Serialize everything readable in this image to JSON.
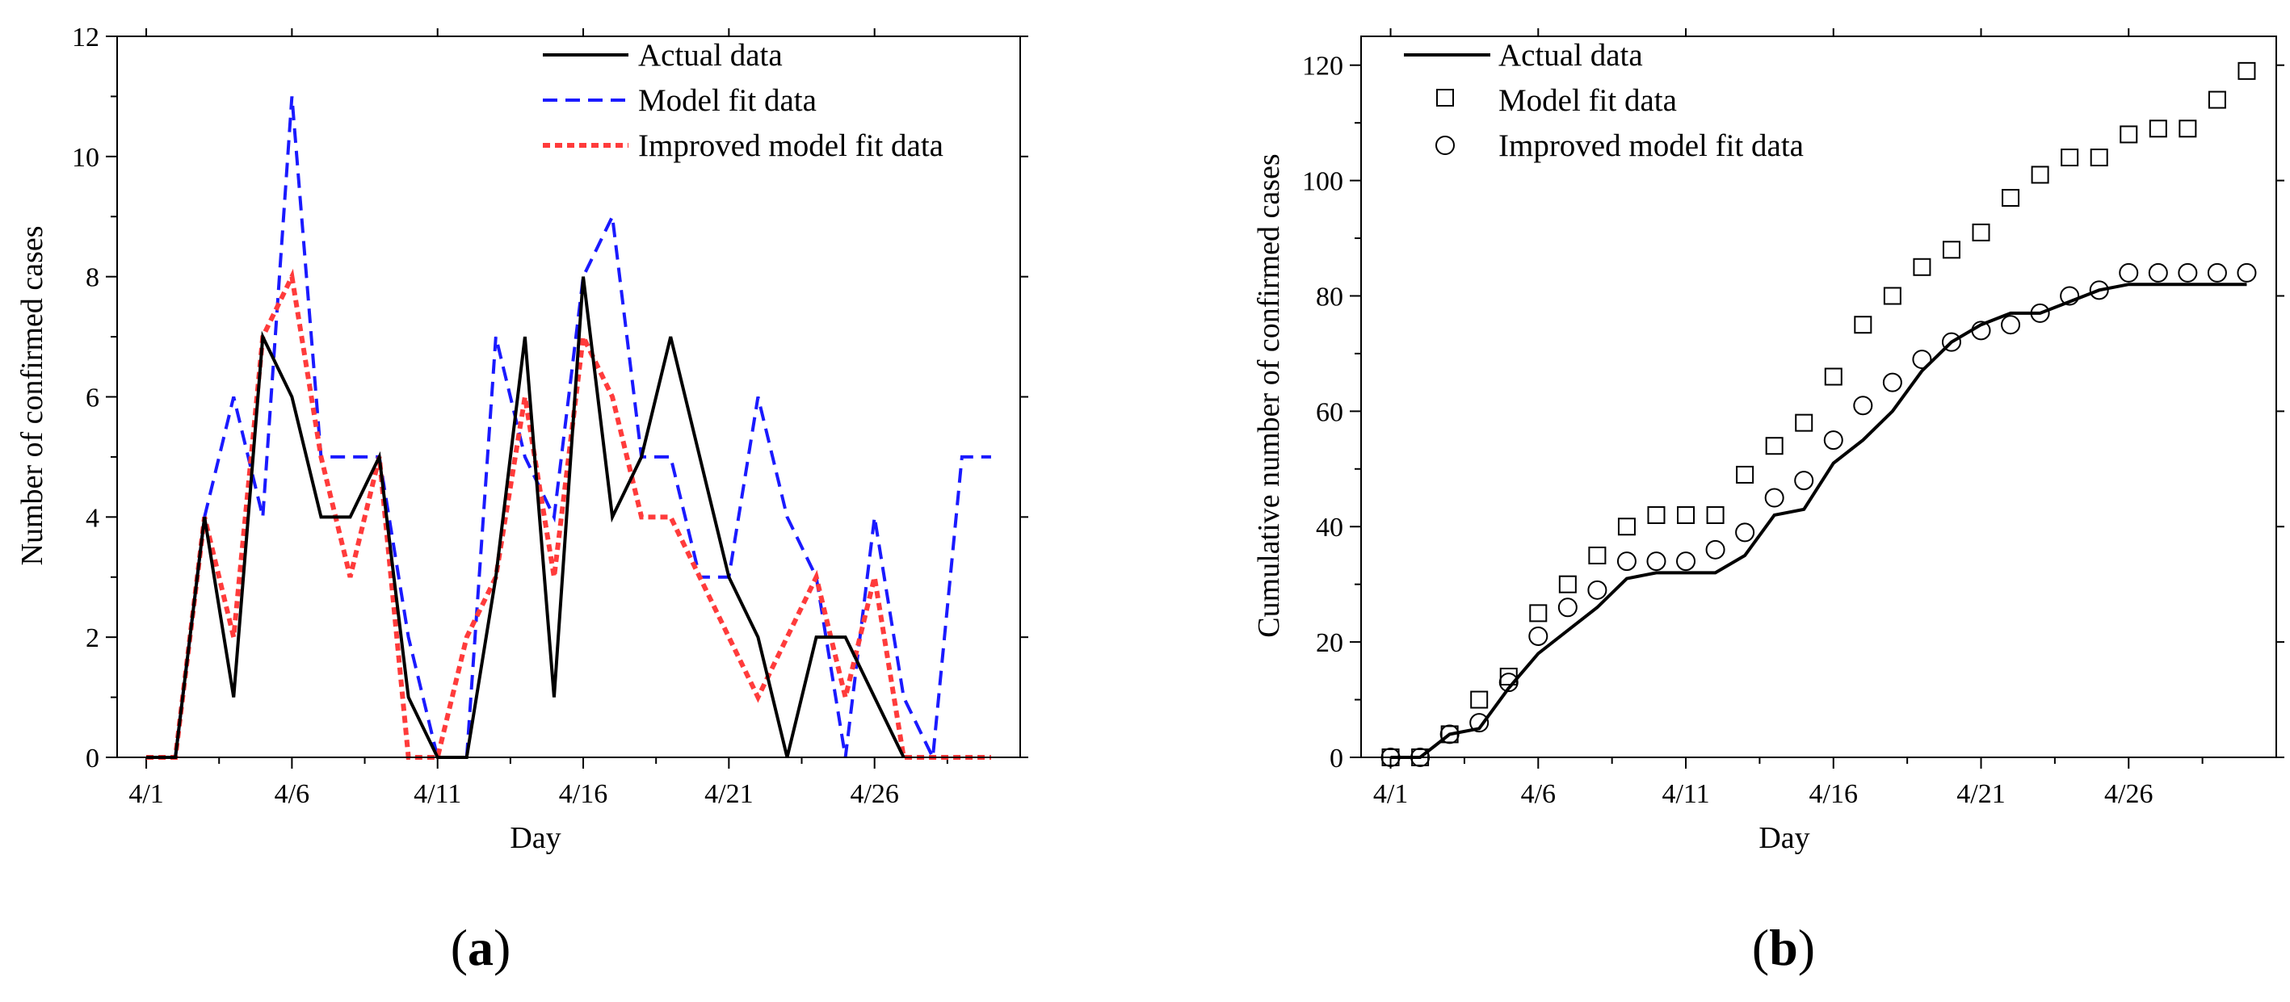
{
  "colors": {
    "actual": "#000000",
    "model": "#1a1aff",
    "improved": "#ff3b3b",
    "axis": "#000000"
  },
  "panels": {
    "a": {
      "open": "(",
      "letter": "a",
      "close": ")"
    },
    "b": {
      "open": "(",
      "letter": "b",
      "close": ")"
    }
  },
  "chart_data": [
    {
      "id": "a",
      "type": "line",
      "title": "",
      "xlabel": "Day",
      "ylabel": "Number of confirmed cases",
      "xlim": [
        0,
        31
      ],
      "ylim": [
        0,
        12
      ],
      "x_ticks": [
        1,
        6,
        11,
        16,
        21,
        26
      ],
      "x_tick_labels": [
        "4/1",
        "4/6",
        "4/11",
        "4/16",
        "4/21",
        "4/26"
      ],
      "y_ticks": [
        0,
        2,
        4,
        6,
        8,
        10,
        12
      ],
      "y_tick_labels": [
        "0",
        "2",
        "4",
        "6",
        "8",
        "10",
        "12"
      ],
      "legend_position": "top-right",
      "series": [
        {
          "name": "Actual data",
          "style": "solid",
          "x": [
            1,
            2,
            3,
            4,
            5,
            6,
            7,
            8,
            9,
            10,
            11,
            12,
            13,
            14,
            15,
            16,
            17,
            18,
            19,
            20,
            21,
            22,
            23,
            24,
            25,
            26,
            27
          ],
          "values": [
            0,
            0,
            4,
            1,
            7,
            6,
            4,
            4,
            5,
            1,
            0,
            0,
            3,
            7,
            1,
            8,
            4,
            5,
            7,
            5,
            3,
            2,
            0,
            2,
            2,
            1,
            0
          ]
        },
        {
          "name": "Model fit data",
          "style": "dashed",
          "x": [
            1,
            2,
            3,
            4,
            5,
            6,
            7,
            8,
            9,
            10,
            11,
            12,
            13,
            14,
            15,
            16,
            17,
            18,
            19,
            20,
            21,
            22,
            23,
            24,
            25,
            26,
            27,
            28,
            29,
            30
          ],
          "values": [
            0,
            0,
            4,
            6,
            4,
            11,
            5,
            5,
            5,
            2,
            0,
            0,
            7,
            5,
            4,
            8,
            9,
            5,
            5,
            3,
            3,
            6,
            4,
            3,
            0,
            4,
            1,
            0,
            5,
            5
          ]
        },
        {
          "name": "Improved model fit data",
          "style": "dotted",
          "x": [
            1,
            2,
            3,
            4,
            5,
            6,
            7,
            8,
            9,
            10,
            11,
            12,
            13,
            14,
            15,
            16,
            17,
            18,
            19,
            20,
            21,
            22,
            23,
            24,
            25,
            26,
            27,
            28,
            29,
            30
          ],
          "values": [
            0,
            0,
            4,
            2,
            7,
            8,
            5,
            3,
            5,
            0,
            0,
            2,
            3,
            6,
            3,
            7,
            6,
            4,
            4,
            3,
            2,
            1,
            2,
            3,
            1,
            3,
            0,
            0,
            0,
            0
          ]
        }
      ]
    },
    {
      "id": "b",
      "type": "line",
      "title": "",
      "xlabel": "Day",
      "ylabel": "Cumulative number of confirmed cases",
      "xlim": [
        0,
        31
      ],
      "ylim": [
        0,
        125
      ],
      "x_ticks": [
        1,
        6,
        11,
        16,
        21,
        26
      ],
      "x_tick_labels": [
        "4/1",
        "4/6",
        "4/11",
        "4/16",
        "4/21",
        "4/26"
      ],
      "y_ticks": [
        0,
        20,
        40,
        60,
        80,
        100,
        120
      ],
      "y_tick_labels": [
        "0",
        "20",
        "40",
        "60",
        "80",
        "100",
        "120"
      ],
      "legend_position": "top-left",
      "series": [
        {
          "name": "Actual data",
          "style": "line",
          "x": [
            1,
            2,
            3,
            4,
            5,
            6,
            7,
            8,
            9,
            10,
            11,
            12,
            13,
            14,
            15,
            16,
            17,
            18,
            19,
            20,
            21,
            22,
            23,
            24,
            25,
            26,
            27,
            28,
            29,
            30
          ],
          "values": [
            0,
            0,
            4,
            5,
            12,
            18,
            22,
            26,
            31,
            32,
            32,
            32,
            35,
            42,
            43,
            51,
            55,
            60,
            67,
            72,
            75,
            77,
            77,
            79,
            81,
            82,
            82,
            82,
            82,
            82
          ]
        },
        {
          "name": "Model fit data",
          "style": "square-marker",
          "x": [
            1,
            2,
            3,
            4,
            5,
            6,
            7,
            8,
            9,
            10,
            11,
            12,
            13,
            14,
            15,
            16,
            17,
            18,
            19,
            20,
            21,
            22,
            23,
            24,
            25,
            26,
            27,
            28,
            29,
            30
          ],
          "values": [
            0,
            0,
            4,
            10,
            14,
            25,
            30,
            35,
            40,
            42,
            42,
            42,
            49,
            54,
            58,
            66,
            75,
            80,
            85,
            88,
            91,
            97,
            101,
            104,
            104,
            108,
            109,
            109,
            114,
            119
          ]
        },
        {
          "name": "Improved model fit data",
          "style": "circle-marker",
          "x": [
            1,
            2,
            3,
            4,
            5,
            6,
            7,
            8,
            9,
            10,
            11,
            12,
            13,
            14,
            15,
            16,
            17,
            18,
            19,
            20,
            21,
            22,
            23,
            24,
            25,
            26,
            27,
            28,
            29,
            30
          ],
          "values": [
            0,
            0,
            4,
            6,
            13,
            21,
            26,
            29,
            34,
            34,
            34,
            36,
            39,
            45,
            48,
            55,
            61,
            65,
            69,
            72,
            74,
            75,
            77,
            80,
            81,
            84,
            84,
            84,
            84,
            84
          ]
        }
      ]
    }
  ]
}
